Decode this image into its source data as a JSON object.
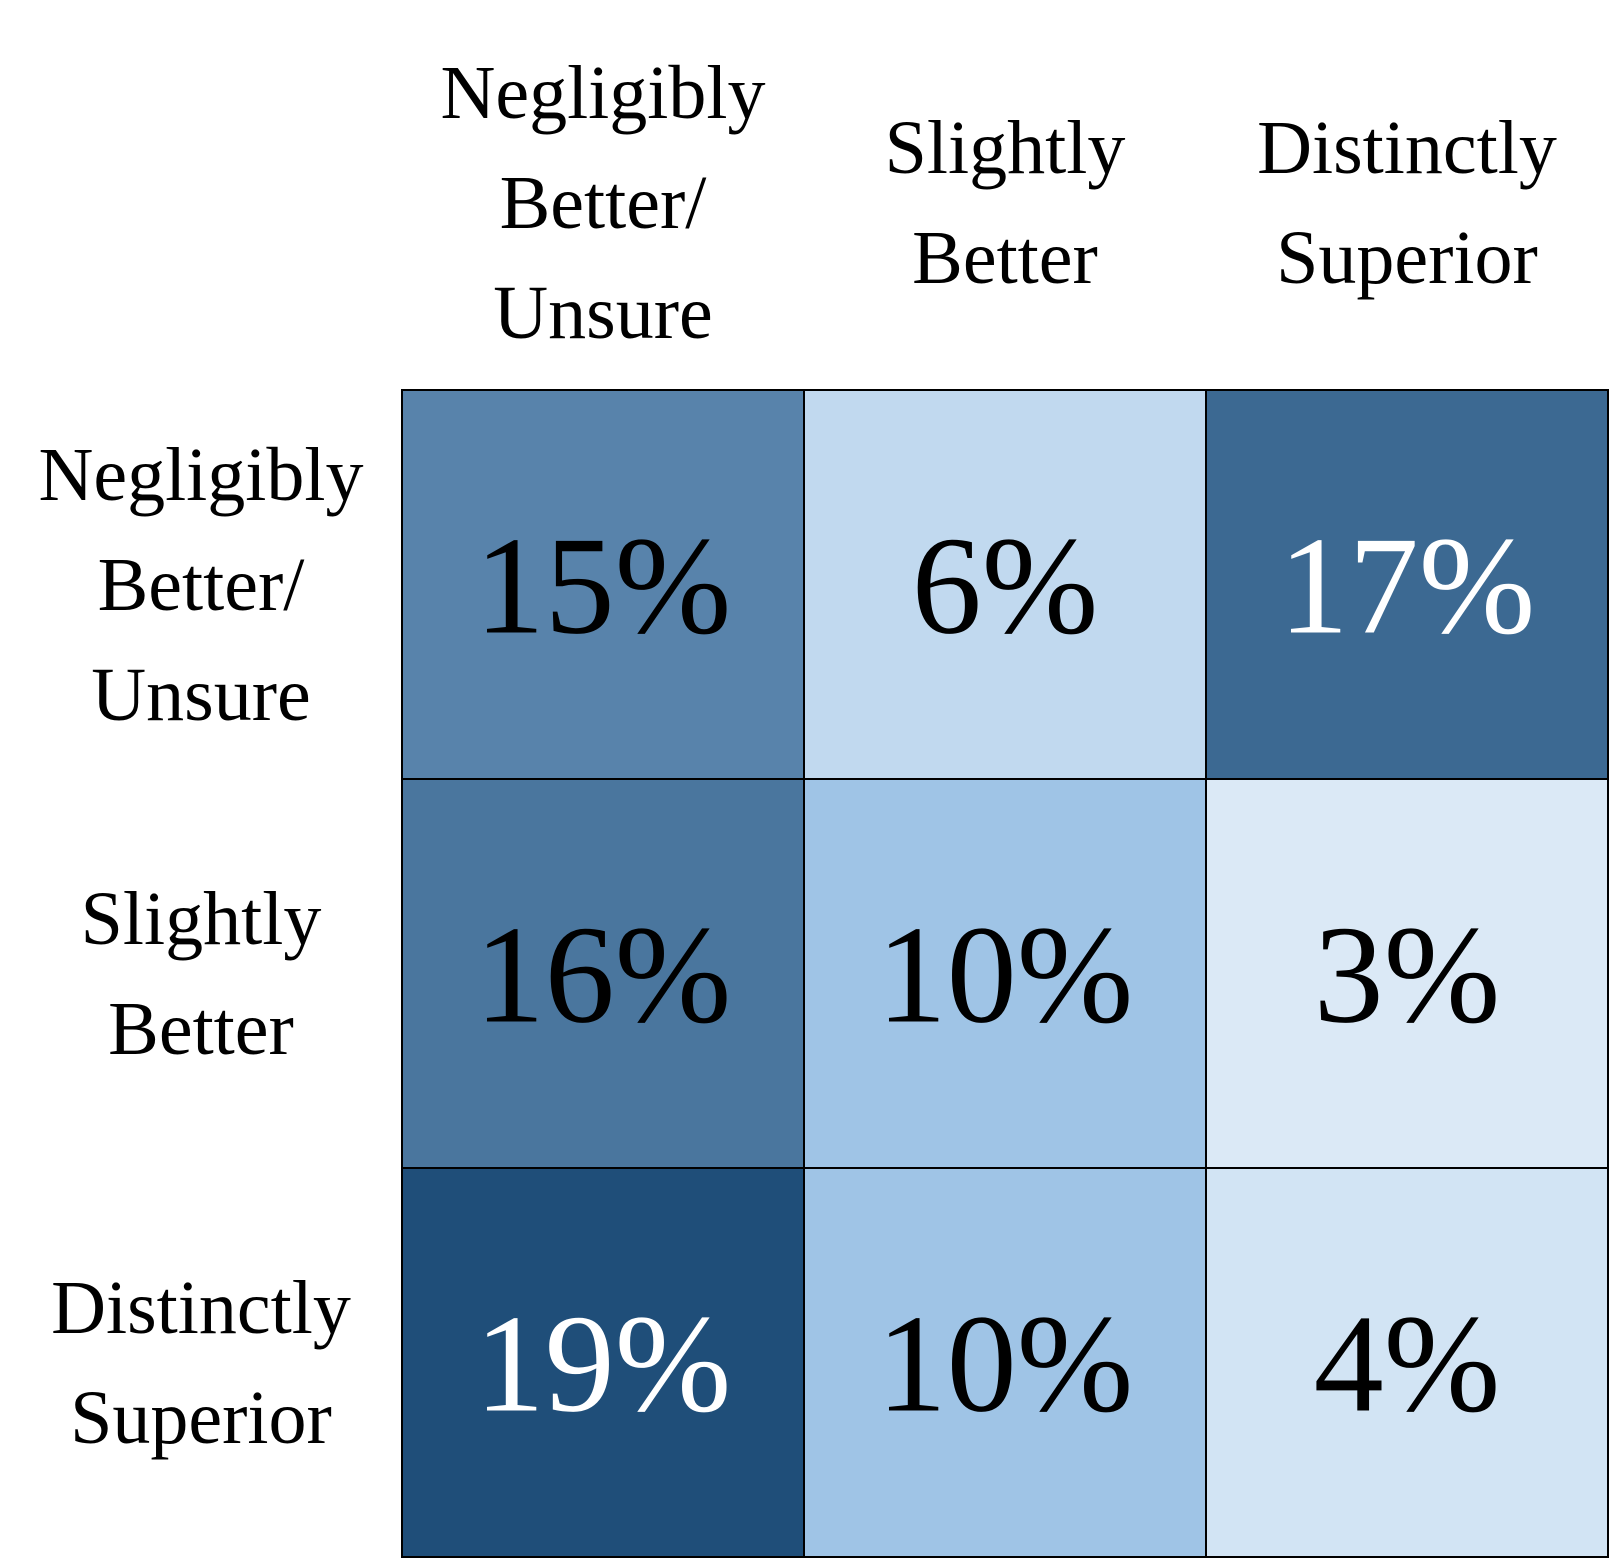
{
  "chart_data": {
    "type": "heatmap",
    "columns": [
      "Negligibly\nBetter/\nUnsure",
      "Slightly\nBetter",
      "Distinctly\nSuperior"
    ],
    "rows": [
      "Negligibly\nBetter/\nUnsure",
      "Slightly\nBetter",
      "Distinctly\nSuperior"
    ],
    "values": [
      [
        15,
        6,
        17
      ],
      [
        16,
        10,
        3
      ],
      [
        19,
        10,
        4
      ]
    ],
    "value_labels": [
      [
        "15%",
        "6%",
        "17%"
      ],
      [
        "16%",
        "10%",
        "3%"
      ],
      [
        "19%",
        "10%",
        "4%"
      ]
    ],
    "value_unit": "%",
    "colormap": "Blues",
    "colors": {
      "min": "#dbe9f6",
      "mid": "#9dc3e6",
      "max": "#1f4e79",
      "border": "#000000",
      "text_dark": "#000000",
      "text_light": "#ffffff"
    }
  }
}
